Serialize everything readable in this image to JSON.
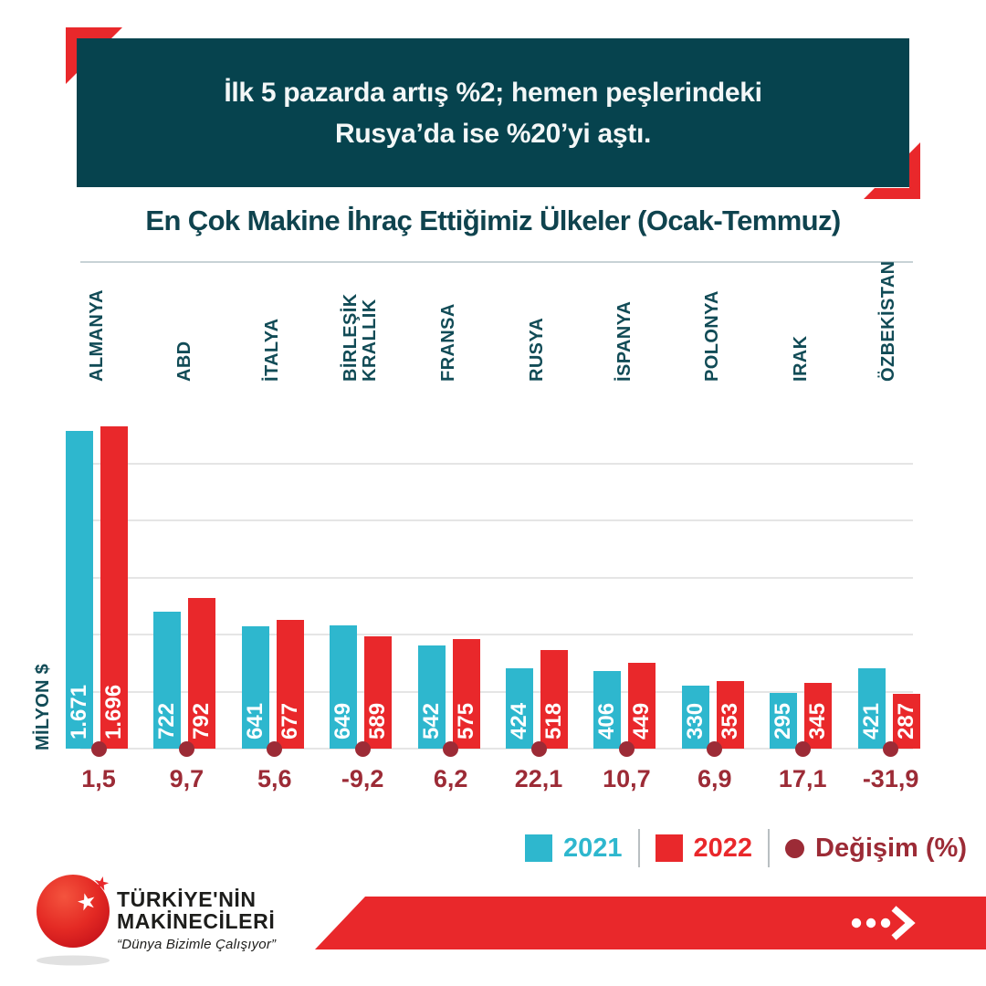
{
  "header": {
    "line1": "İlk 5 pazarda artış %2; hemen peşlerindeki",
    "line2": "Rusya’da ise %20’yi aştı."
  },
  "title": "En Çok Makine İhraç Ettiğimiz Ülkeler (Ocak-Temmuz)",
  "chart_data": {
    "type": "bar",
    "title": "En Çok Makine İhraç Ettiğimiz Ülkeler (Ocak-Temmuz)",
    "ylabel": "MİLYON $",
    "ylim": [
      0,
      1500
    ],
    "gridline_values": [
      0,
      300,
      600,
      900,
      1200,
      1500
    ],
    "grid": true,
    "legend_position": "bottom-right",
    "categories": [
      "ALMANYA",
      "ABD",
      "İTALYA",
      "BİRLEŞİK KRALLIK",
      "FRANSA",
      "RUSYA",
      "İSPANYA",
      "POLONYA",
      "IRAK",
      "ÖZBEKİSTAN"
    ],
    "series": [
      {
        "name": "2021",
        "color": "#2eb7ce",
        "values": [
          1671,
          722,
          641,
          649,
          542,
          424,
          406,
          330,
          295,
          421
        ],
        "labels": [
          "1.671",
          "722",
          "641",
          "649",
          "542",
          "424",
          "406",
          "330",
          "295",
          "421"
        ]
      },
      {
        "name": "2022",
        "color": "#e9282b",
        "values": [
          1696,
          792,
          677,
          589,
          575,
          518,
          449,
          353,
          345,
          287
        ],
        "labels": [
          "1.696",
          "792",
          "677",
          "589",
          "575",
          "518",
          "449",
          "353",
          "345",
          "287"
        ]
      }
    ],
    "change_percent": {
      "name": "Değişim (%)",
      "color": "#9c2b36",
      "labels": [
        "1,5",
        "9,7",
        "5,6",
        "-9,2",
        "6,2",
        "22,1",
        "10,7",
        "6,9",
        "17,1",
        "-31,9"
      ]
    }
  },
  "legend": {
    "items": [
      {
        "label": "2021",
        "color": "#2eb7ce",
        "shape": "square"
      },
      {
        "label": "2022",
        "color": "#e9282b",
        "shape": "square"
      },
      {
        "label": "Değişim (%)",
        "color": "#9c2b36",
        "shape": "circle"
      }
    ]
  },
  "footer": {
    "brand_line1": "TÜRKİYE'NİN",
    "brand_line2": "MAKİNECİLERİ",
    "tagline": "“Dünya Bizimle Çalışıyor”"
  },
  "icons": {
    "banner_dots": "ellipsis-dots-icon",
    "banner_arrow": "chevron-right-icon",
    "logo": "red-globe-star-logo"
  },
  "colors": {
    "header_teal": "#06434e",
    "accent_red": "#e9282b",
    "cyan_2021": "#2eb7ce",
    "red_2022": "#e9282b",
    "dark_red_change": "#9c2b36",
    "label_teal": "#114b56",
    "gridline": "#e5e5e5"
  }
}
